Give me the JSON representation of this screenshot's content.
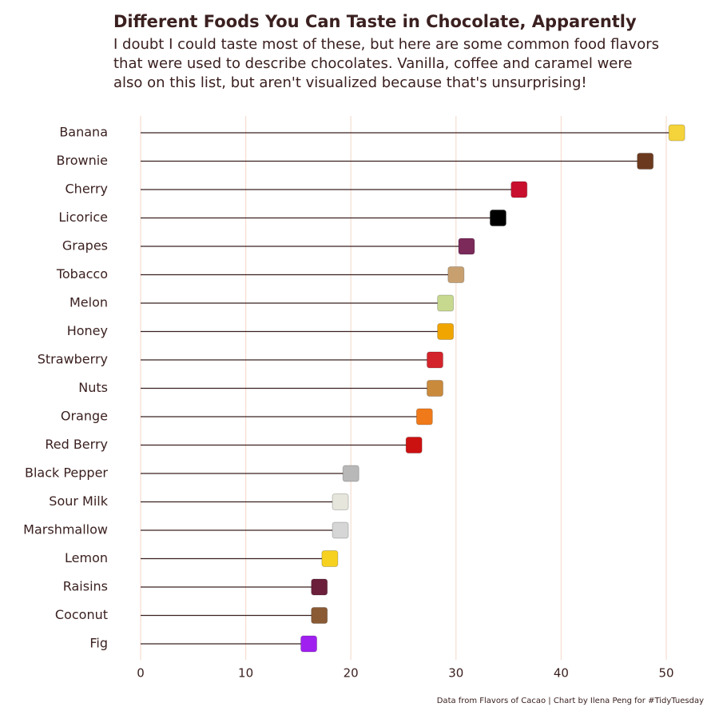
{
  "chart_data": {
    "type": "lollipop",
    "title": "Different Foods You Can Taste in Chocolate, Apparently",
    "subtitle": [
      "I doubt I could taste most of these, but here are some common food flavors",
      "that were used to describe chocolates. Vanilla, coffee and caramel were",
      "also on this list, but aren't visualized because that's unsurprising!"
    ],
    "caption": "Data from Flavors of Cacao | Chart by Ilena Peng for #TidyTuesday",
    "categories": [
      "Banana",
      "Brownie",
      "Cherry",
      "Licorice",
      "Grapes",
      "Tobacco",
      "Melon",
      "Honey",
      "Strawberry",
      "Nuts",
      "Orange",
      "Red Berry",
      "Black Pepper",
      "Sour Milk",
      "Marshmallow",
      "Lemon",
      "Raisins",
      "Coconut",
      "Fig"
    ],
    "values": [
      51,
      48,
      36,
      34,
      31,
      30,
      29,
      29,
      28,
      28,
      27,
      26,
      20,
      19,
      19,
      18,
      17,
      17,
      16
    ],
    "colors": [
      "#f5d33b",
      "#6b3a1e",
      "#c8102e",
      "#000000",
      "#7b2a5a",
      "#c8a070",
      "#c7d98f",
      "#f0a500",
      "#d3242c",
      "#c98a3c",
      "#f07a1a",
      "#cc1111",
      "#b8b8b8",
      "#e6e6dc",
      "#d6d6d6",
      "#f7d120",
      "#6b1f3a",
      "#8a5a35",
      "#a020f0"
    ],
    "line_color": "#3b2020",
    "xlim": [
      0,
      52
    ],
    "xticks": [
      0,
      10,
      20,
      30,
      40,
      50
    ],
    "grid": true,
    "grid_color": "#f7ddd0"
  }
}
